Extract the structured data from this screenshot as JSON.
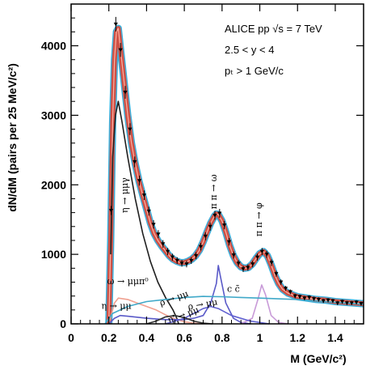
{
  "chart_data": {
    "type": "line",
    "xlabel": "M (GeV/c²)",
    "ylabel": "dN/dM (pairs per 25 MeV/c²)",
    "xlim": [
      0,
      1.55
    ],
    "ylim": [
      0,
      4600
    ],
    "x_ticks": [
      0,
      0.2,
      0.4,
      0.6,
      0.8,
      1,
      1.2,
      1.4
    ],
    "x_tick_labels": [
      "0",
      "0.2",
      "0.4",
      "0.6",
      "0.8",
      "1",
      "1.2",
      "1.4"
    ],
    "y_ticks": [
      0,
      1000,
      2000,
      3000,
      4000
    ],
    "y_tick_labels": [
      "0",
      "1000",
      "2000",
      "3000",
      "4000"
    ],
    "info_text": [
      "ALICE pp  √s = 7 TeV",
      "2.5 < y < 4",
      "pₜ > 1 GeV/c"
    ],
    "annotations": [
      {
        "text": "η → μμγ",
        "x": 0.3,
        "y": 1850,
        "rotate": -90
      },
      {
        "text": "π π → ω",
        "x": 0.77,
        "y": 1900,
        "rotate": -90
      },
      {
        "text": "π π → φ",
        "x": 1.01,
        "y": 1500,
        "rotate": -90
      },
      {
        "text": "ω → μμπ⁰",
        "x": 0.3,
        "y": 570,
        "rotate": 0
      },
      {
        "text": "η → μμ",
        "x": 0.24,
        "y": 215,
        "rotate": 0
      },
      {
        "text": "ρ → μμ",
        "x": 0.55,
        "y": 330,
        "rotate": -20
      },
      {
        "text": "η' → μμ",
        "x": 0.6,
        "y": 90,
        "rotate": -20
      },
      {
        "text": "ρ → μμ",
        "x": 0.7,
        "y": 240,
        "rotate": -10
      },
      {
        "text": "c c̄",
        "x": 0.86,
        "y": 460,
        "rotate": 0
      }
    ],
    "series": [
      {
        "color": "#1f1f1f",
        "points": [
          [
            0.21,
            1000
          ],
          [
            0.22,
            2400
          ],
          [
            0.235,
            3000
          ],
          [
            0.25,
            3200
          ],
          [
            0.27,
            2900
          ],
          [
            0.3,
            2400
          ],
          [
            0.34,
            1800
          ],
          [
            0.38,
            1300
          ],
          [
            0.42,
            900
          ],
          [
            0.46,
            600
          ],
          [
            0.5,
            380
          ],
          [
            0.54,
            200
          ],
          [
            0.56,
            80
          ],
          [
            0.57,
            0
          ]
        ]
      },
      {
        "color": "#f0a090",
        "points": [
          [
            0.2,
            0
          ],
          [
            0.23,
            300
          ],
          [
            0.25,
            370
          ],
          [
            0.3,
            350
          ],
          [
            0.35,
            300
          ],
          [
            0.4,
            250
          ],
          [
            0.45,
            200
          ],
          [
            0.5,
            130
          ],
          [
            0.55,
            70
          ],
          [
            0.6,
            30
          ],
          [
            0.65,
            10
          ],
          [
            0.7,
            0
          ]
        ]
      },
      {
        "color": "#5a5ac8",
        "points": [
          [
            0.2,
            0
          ],
          [
            0.23,
            80
          ],
          [
            0.26,
            120
          ],
          [
            0.3,
            110
          ],
          [
            0.4,
            80
          ],
          [
            0.5,
            60
          ],
          [
            0.6,
            60
          ],
          [
            0.65,
            80
          ],
          [
            0.7,
            120
          ],
          [
            0.74,
            300
          ],
          [
            0.77,
            580
          ],
          [
            0.78,
            840
          ],
          [
            0.79,
            700
          ],
          [
            0.82,
            300
          ],
          [
            0.86,
            80
          ],
          [
            0.9,
            20
          ],
          [
            0.95,
            0
          ]
        ]
      },
      {
        "color": "#c89ad8",
        "points": [
          [
            0.9,
            0
          ],
          [
            0.96,
            80
          ],
          [
            0.99,
            350
          ],
          [
            1.01,
            560
          ],
          [
            1.03,
            420
          ],
          [
            1.06,
            120
          ],
          [
            1.1,
            20
          ],
          [
            1.15,
            0
          ]
        ]
      },
      {
        "color": "#40a9c9",
        "points": [
          [
            0.18,
            0
          ],
          [
            0.22,
            150
          ],
          [
            0.3,
            250
          ],
          [
            0.4,
            320
          ],
          [
            0.5,
            350
          ],
          [
            0.6,
            380
          ],
          [
            0.7,
            395
          ],
          [
            0.8,
            390
          ],
          [
            0.9,
            380
          ],
          [
            1.0,
            370
          ],
          [
            1.1,
            360
          ],
          [
            1.2,
            350
          ],
          [
            1.3,
            330
          ],
          [
            1.4,
            310
          ],
          [
            1.5,
            290
          ],
          [
            1.55,
            280
          ]
        ]
      },
      {
        "color": "#6060d0",
        "points": [
          [
            0.5,
            0
          ],
          [
            0.55,
            40
          ],
          [
            0.6,
            80
          ],
          [
            0.65,
            150
          ],
          [
            0.7,
            220
          ],
          [
            0.74,
            250
          ],
          [
            0.78,
            220
          ],
          [
            0.85,
            120
          ],
          [
            0.95,
            40
          ],
          [
            1.05,
            0
          ]
        ]
      },
      {
        "color": "#303030",
        "points": [
          [
            0.4,
            0
          ],
          [
            0.45,
            40
          ],
          [
            0.5,
            100
          ],
          [
            0.55,
            120
          ],
          [
            0.6,
            90
          ],
          [
            0.65,
            40
          ],
          [
            0.7,
            10
          ],
          [
            0.75,
            0
          ]
        ]
      }
    ],
    "fit_band": {
      "color": "#e8402c",
      "edge_color": "#2aa8d8",
      "points": [
        [
          0.2,
          0
        ],
        [
          0.21,
          1200
        ],
        [
          0.22,
          2900
        ],
        [
          0.23,
          3800
        ],
        [
          0.24,
          4200
        ],
        [
          0.25,
          4250
        ],
        [
          0.26,
          4000
        ],
        [
          0.28,
          3500
        ],
        [
          0.3,
          3000
        ],
        [
          0.32,
          2600
        ],
        [
          0.34,
          2300
        ],
        [
          0.36,
          2050
        ],
        [
          0.38,
          1850
        ],
        [
          0.4,
          1650
        ],
        [
          0.42,
          1450
        ],
        [
          0.44,
          1300
        ],
        [
          0.46,
          1200
        ],
        [
          0.48,
          1120
        ],
        [
          0.5,
          1050
        ],
        [
          0.52,
          980
        ],
        [
          0.54,
          930
        ],
        [
          0.56,
          900
        ],
        [
          0.58,
          880
        ],
        [
          0.6,
          880
        ],
        [
          0.62,
          900
        ],
        [
          0.64,
          930
        ],
        [
          0.66,
          980
        ],
        [
          0.68,
          1060
        ],
        [
          0.7,
          1180
        ],
        [
          0.72,
          1320
        ],
        [
          0.74,
          1450
        ],
        [
          0.76,
          1550
        ],
        [
          0.77,
          1580
        ],
        [
          0.78,
          1575
        ],
        [
          0.8,
          1480
        ],
        [
          0.82,
          1320
        ],
        [
          0.84,
          1130
        ],
        [
          0.86,
          980
        ],
        [
          0.88,
          880
        ],
        [
          0.9,
          820
        ],
        [
          0.92,
          800
        ],
        [
          0.94,
          810
        ],
        [
          0.96,
          860
        ],
        [
          0.98,
          940
        ],
        [
          1.0,
          1010
        ],
        [
          1.02,
          1040
        ],
        [
          1.04,
          980
        ],
        [
          1.06,
          850
        ],
        [
          1.08,
          700
        ],
        [
          1.1,
          580
        ],
        [
          1.12,
          500
        ],
        [
          1.15,
          440
        ],
        [
          1.2,
          390
        ],
        [
          1.25,
          370
        ],
        [
          1.3,
          350
        ],
        [
          1.35,
          340
        ],
        [
          1.4,
          320
        ],
        [
          1.45,
          310
        ],
        [
          1.5,
          300
        ],
        [
          1.55,
          290
        ]
      ]
    },
    "data_points": {
      "color": "#000000",
      "points": [
        [
          0.212,
          1630
        ],
        [
          0.237,
          4310
        ],
        [
          0.262,
          3940
        ],
        [
          0.287,
          3330
        ],
        [
          0.312,
          2800
        ],
        [
          0.337,
          2330
        ],
        [
          0.362,
          2060
        ],
        [
          0.387,
          1850
        ],
        [
          0.412,
          1620
        ],
        [
          0.437,
          1430
        ],
        [
          0.462,
          1290
        ],
        [
          0.487,
          1150
        ],
        [
          0.512,
          1040
        ],
        [
          0.537,
          960
        ],
        [
          0.562,
          910
        ],
        [
          0.587,
          870
        ],
        [
          0.612,
          860
        ],
        [
          0.637,
          910
        ],
        [
          0.662,
          980
        ],
        [
          0.687,
          1110
        ],
        [
          0.712,
          1260
        ],
        [
          0.737,
          1400
        ],
        [
          0.762,
          1560
        ],
        [
          0.787,
          1590
        ],
        [
          0.812,
          1420
        ],
        [
          0.837,
          1180
        ],
        [
          0.862,
          990
        ],
        [
          0.887,
          870
        ],
        [
          0.912,
          790
        ],
        [
          0.937,
          810
        ],
        [
          0.962,
          860
        ],
        [
          0.987,
          960
        ],
        [
          1.012,
          1040
        ],
        [
          1.037,
          1000
        ],
        [
          1.062,
          880
        ],
        [
          1.087,
          720
        ],
        [
          1.112,
          600
        ],
        [
          1.137,
          510
        ],
        [
          1.162,
          460
        ],
        [
          1.187,
          400
        ],
        [
          1.212,
          390
        ],
        [
          1.237,
          370
        ],
        [
          1.262,
          380
        ],
        [
          1.287,
          360
        ],
        [
          1.312,
          350
        ],
        [
          1.337,
          330
        ],
        [
          1.362,
          340
        ],
        [
          1.387,
          330
        ],
        [
          1.412,
          300
        ],
        [
          1.437,
          320
        ],
        [
          1.462,
          300
        ],
        [
          1.487,
          300
        ],
        [
          1.512,
          310
        ],
        [
          1.537,
          290
        ]
      ]
    }
  }
}
